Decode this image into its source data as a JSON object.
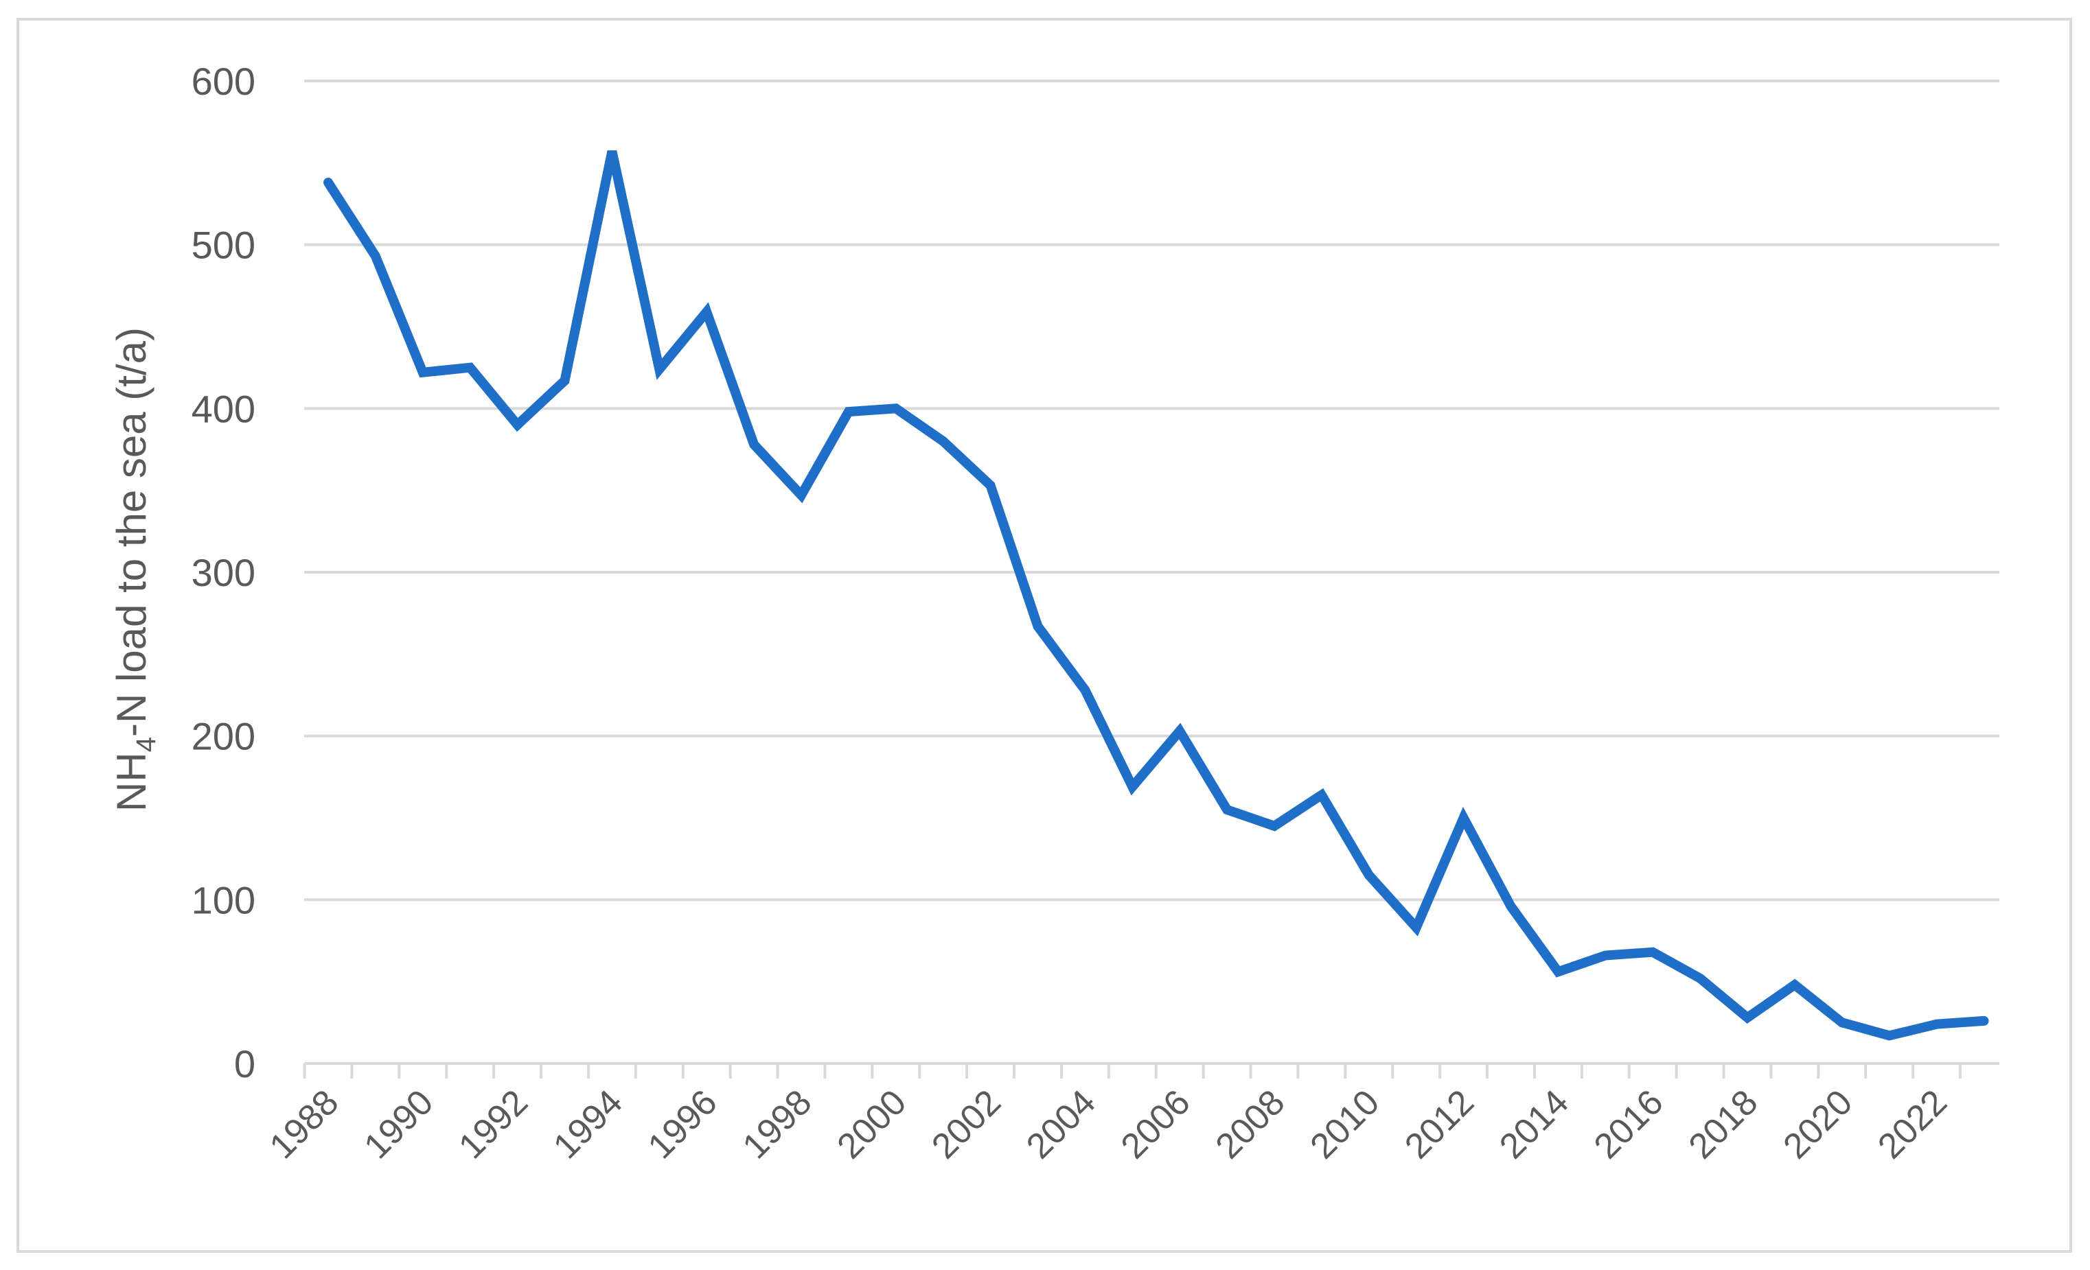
{
  "chart_data": {
    "type": "line",
    "title": "",
    "xlabel": "",
    "ylabel": {
      "prefix": "NH",
      "subscript": "4",
      "suffix": "-N load to the sea (t/a)"
    },
    "x_tick_labels": [
      "1988",
      "1990",
      "1992",
      "1994",
      "1996",
      "1998",
      "2000",
      "2002",
      "2004",
      "2006",
      "2008",
      "2010",
      "2012",
      "2014",
      "2016",
      "2018",
      "2020",
      "2022"
    ],
    "y_tick_labels": [
      "0",
      "100",
      "200",
      "300",
      "400",
      "500",
      "600"
    ],
    "ylim": [
      0,
      600
    ],
    "xlim": [
      1988,
      2023
    ],
    "grid": true,
    "legend": "none",
    "color": "#1f6fc8",
    "series": [
      {
        "x": [
          1988,
          1989,
          1990,
          1991,
          1992,
          1993,
          1994,
          1995,
          1996,
          1997,
          1998,
          1999,
          2000,
          2001,
          2002,
          2003,
          2004,
          2005,
          2006,
          2007,
          2008,
          2009,
          2010,
          2011,
          2012,
          2013,
          2014,
          2015,
          2016,
          2017,
          2018,
          2019,
          2020,
          2021,
          2022,
          2023
        ],
        "values": [
          538,
          493,
          422,
          425,
          390,
          417,
          557,
          424,
          459,
          378,
          347,
          398,
          400,
          380,
          353,
          267,
          228,
          169,
          203,
          155,
          145,
          164,
          115,
          83,
          150,
          96,
          56,
          66,
          68,
          52,
          28,
          48,
          25,
          17,
          24,
          26
        ]
      }
    ]
  }
}
